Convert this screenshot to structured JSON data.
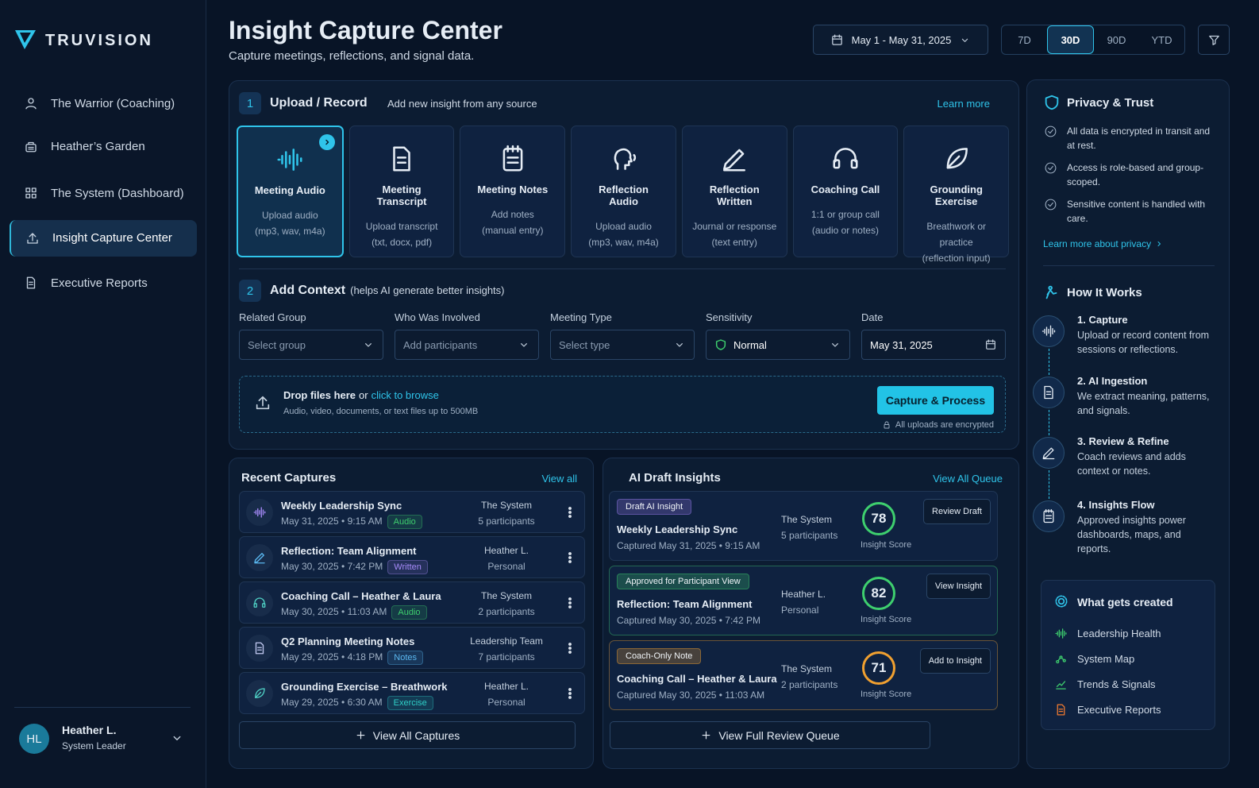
{
  "brand": "TRUVISION",
  "nav": {
    "active": 3,
    "items": [
      {
        "label": "The Warrior (Coaching)",
        "icon": "user"
      },
      {
        "label": "Heather’s Garden",
        "icon": "garden"
      },
      {
        "label": "The System (Dashboard)",
        "icon": "grid"
      },
      {
        "label": "Insight Capture Center",
        "icon": "upload"
      },
      {
        "label": "Executive Reports",
        "icon": "doc"
      }
    ]
  },
  "user": {
    "initials": "HL",
    "name": "Heather L.",
    "role": "System Leader"
  },
  "header": {
    "title": "Insight Capture Center",
    "subtitle": "Capture meetings, reflections, and signal data.",
    "date_range": "May 1 - May 31, 2025",
    "periods": [
      "7D",
      "30D",
      "90D",
      "YTD"
    ],
    "active_period": 1
  },
  "upload": {
    "step": "1",
    "title": "Upload / Record",
    "subtitle": "Add new insight from any source",
    "link": "Learn more",
    "selected": 0,
    "sources": [
      {
        "title": "Meeting Audio",
        "lines": [
          "Upload audio",
          "(mp3, wav, m4a)"
        ],
        "icon": "wave"
      },
      {
        "title": "Meeting Transcript",
        "lines": [
          "Upload transcript",
          "(txt, docx, pdf)"
        ],
        "icon": "doc"
      },
      {
        "title": "Meeting Notes",
        "lines": [
          "Add notes",
          "(manual entry)"
        ],
        "icon": "notes"
      },
      {
        "title": "Reflection Audio",
        "lines": [
          "Upload audio",
          "(mp3, wav, m4a)"
        ],
        "icon": "head"
      },
      {
        "title": "Reflection Written",
        "lines": [
          "Journal or response",
          "(text entry)"
        ],
        "icon": "pen"
      },
      {
        "title": "Coaching Call",
        "lines": [
          "1:1 or group call",
          "(audio or notes)"
        ],
        "icon": "headset"
      },
      {
        "title": "Grounding Exercise",
        "lines": [
          "Breathwork or practice",
          "(reflection input)"
        ],
        "icon": "leaf"
      }
    ]
  },
  "context": {
    "step": "2",
    "title": "Add Context",
    "hint": "(helps AI generate better insights)",
    "fields": [
      {
        "label": "Related Group",
        "value": "Select group",
        "placeholder": true
      },
      {
        "label": "Who Was Involved",
        "value": "Add participants",
        "placeholder": true
      },
      {
        "label": "Meeting Type",
        "value": "Select type",
        "placeholder": true
      },
      {
        "label": "Sensitivity",
        "value": "Normal",
        "placeholder": false,
        "icon": "shield"
      },
      {
        "label": "Date",
        "value": "May 31, 2025",
        "placeholder": false,
        "icon": "calendar"
      }
    ]
  },
  "dropzone": {
    "title": "Drop files here",
    "or": "or",
    "link": "click to browse",
    "note": "Audio, video, documents, or text files up to 500MB",
    "button": "Capture & Process",
    "secure": "All uploads are encrypted"
  },
  "recent": {
    "title": "Recent Captures",
    "link": "View all",
    "button": "View All Captures",
    "items": [
      {
        "title": "Weekly Leadership Sync",
        "date": "May 31, 2025 • 9:15 AM",
        "tag": "Audio",
        "tag_color": "#3ecf6e",
        "group": "The System",
        "people": "5 participants",
        "icon": "wave",
        "icon_color": "#a78bfa"
      },
      {
        "title": "Reflection: Team Alignment",
        "date": "May 30, 2025 • 7:42 PM",
        "tag": "Written",
        "tag_color": "#a78bfa",
        "group": "Heather L.",
        "people": "Personal",
        "icon": "pen",
        "icon_color": "#5ab8f0"
      },
      {
        "title": "Coaching Call – Heather & Laura",
        "date": "May 30, 2025 • 11:03 AM",
        "tag": "Audio",
        "tag_color": "#3ecf6e",
        "group": "The System",
        "people": "2 participants",
        "icon": "headset",
        "icon_color": "#4fd1c5"
      },
      {
        "title": "Q2 Planning Meeting Notes",
        "date": "May 29, 2025 • 4:18 PM",
        "tag": "Notes",
        "tag_color": "#5ab8f0",
        "group": "Leadership Team",
        "people": "7 participants",
        "icon": "doc",
        "icon_color": "#c0c8f0"
      },
      {
        "title": "Grounding Exercise – Breathwork",
        "date": "May 29, 2025 • 6:30 AM",
        "tag": "Exercise",
        "tag_color": "#2fd0c8",
        "group": "Heather L.",
        "people": "Personal",
        "icon": "leaf",
        "icon_color": "#4fd1c5"
      }
    ]
  },
  "drafts": {
    "title": "AI Draft Insights",
    "link": "View All Queue",
    "button": "View Full Review Queue",
    "score_label": "Insight Score",
    "items": [
      {
        "badge": "Draft AI Insight",
        "color": "#9b7cf0",
        "ring": "#3ecf6e",
        "title": "Weekly Leadership Sync",
        "captured": "Captured May 31, 2025 • 9:15 AM",
        "group": "The System",
        "people": "5 participants",
        "score": 78,
        "action": "Review Draft"
      },
      {
        "badge": "Approved for Participant View",
        "color": "#3ecf6e",
        "ring": "#3ecf6e",
        "title": "Reflection: Team Alignment",
        "captured": "Captured May 30, 2025 • 7:42 PM",
        "group": "Heather L.",
        "people": "Personal",
        "score": 82,
        "action": "View Insight"
      },
      {
        "badge": "Coach-Only Note",
        "color": "#f0a030",
        "ring": "#f0a030",
        "title": "Coaching Call – Heather & Laura",
        "captured": "Captured May 30, 2025 • 11:03 AM",
        "group": "The System",
        "people": "2 participants",
        "score": 71,
        "action": "Add to Insight"
      }
    ]
  },
  "privacy": {
    "title": "Privacy & Trust",
    "items": [
      "All data is encrypted in transit and at rest.",
      "Access is role-based and group-scoped.",
      "Sensitive content is handled with care."
    ],
    "link": "Learn more about privacy"
  },
  "how": {
    "title": "How It Works",
    "steps": [
      {
        "title": "1. Capture",
        "text": "Upload or record content from sessions or reflections.",
        "icon": "wave"
      },
      {
        "title": "2. AI Ingestion",
        "text": "We extract meaning, patterns, and signals.",
        "icon": "doc"
      },
      {
        "title": "3. Review & Refine",
        "text": "Coach reviews and adds context or notes.",
        "icon": "pen"
      },
      {
        "title": "4. Insights Flow",
        "text": "Approved insights power dashboards, maps, and reports.",
        "icon": "notes"
      }
    ]
  },
  "created": {
    "title": "What gets created",
    "items": [
      {
        "label": "Leadership Health",
        "icon": "wave",
        "color": "#3ecf6e"
      },
      {
        "label": "System Map",
        "icon": "map",
        "color": "#3ecf6e"
      },
      {
        "label": "Trends & Signals",
        "icon": "trend",
        "color": "#3ecf6e"
      },
      {
        "label": "Executive Reports",
        "icon": "doc",
        "color": "#f07a30"
      }
    ]
  }
}
